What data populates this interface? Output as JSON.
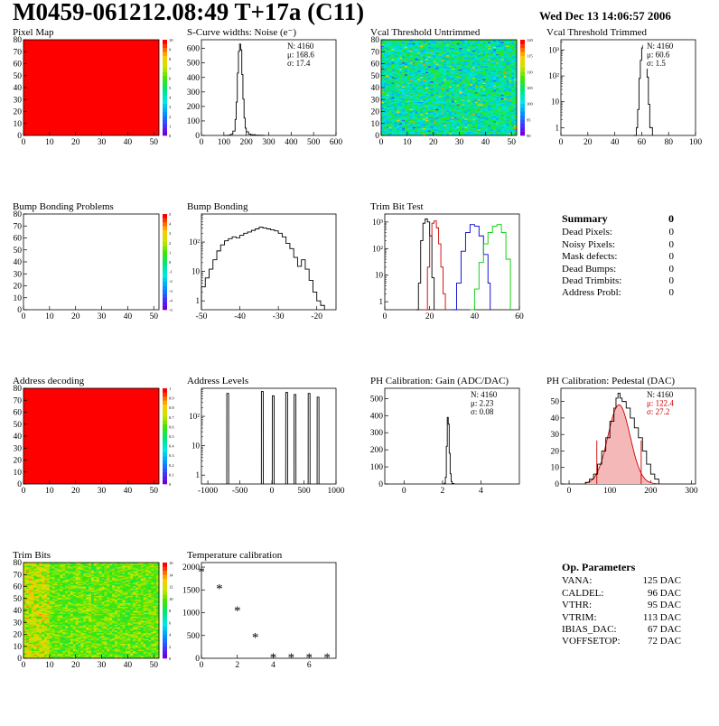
{
  "header": {
    "title": "M0459-061212.08:49 T+17a (C11)",
    "date": "Wed Dec 13 14:06:57 2006"
  },
  "colors": {
    "red_fill": "#ff0000",
    "trim_red": "#cc0000",
    "trim_blue": "#0000cc",
    "trim_green": "#00cc00",
    "pedestal_stat_red": "#cc0000"
  },
  "panels": [
    {
      "id": "pixel-map",
      "title": "Pixel Map",
      "chart_data": {
        "type": "heatmap",
        "fill": "uniform-red",
        "xlim": [
          0,
          52
        ],
        "ylim": [
          0,
          80
        ],
        "xticks": [
          0,
          10,
          20,
          30,
          40,
          50
        ],
        "yticks": [
          0,
          10,
          20,
          30,
          40,
          50,
          60,
          70,
          80
        ],
        "zticks": [
          "0",
          "1",
          "2",
          "3",
          "4",
          "5",
          "6",
          "7",
          "8",
          "9",
          "10"
        ]
      }
    },
    {
      "id": "scurve-noise",
      "title": "S-Curve widths: Noise (e⁻)",
      "chart_data": {
        "type": "line",
        "xlim": [
          0,
          600
        ],
        "ylim": [
          0,
          660
        ],
        "xticks": [
          0,
          100,
          200,
          300,
          400,
          500,
          600
        ],
        "yticks": [
          0,
          100,
          200,
          300,
          400,
          500,
          600
        ],
        "x": [
          100,
          120,
          130,
          140,
          150,
          155,
          160,
          165,
          170,
          175,
          180,
          185,
          190,
          195,
          200,
          210,
          220,
          240,
          260,
          280
        ],
        "y": [
          0,
          2,
          8,
          30,
          110,
          230,
          430,
          580,
          630,
          590,
          420,
          250,
          120,
          50,
          25,
          10,
          5,
          2,
          1,
          0
        ],
        "stats": {
          "N": "N: 4160",
          "mu": "μ: 168.6",
          "sigma": "σ: 17.4"
        }
      }
    },
    {
      "id": "vcal-untrimmed",
      "title": "Vcal Threshold Untrimmed",
      "chart_data": {
        "type": "heatmap",
        "fill": "noise-cyan-green",
        "xlim": [
          0,
          52
        ],
        "ylim": [
          0,
          80
        ],
        "xticks": [
          0,
          10,
          20,
          30,
          40,
          50
        ],
        "yticks": [
          0,
          10,
          20,
          30,
          40,
          50,
          60,
          70,
          80
        ],
        "zticks": [
          "90",
          "95",
          "100",
          "105",
          "110",
          "115",
          "120"
        ]
      }
    },
    {
      "id": "vcal-trimmed",
      "title": "Vcal Threshold Trimmed",
      "chart_data": {
        "type": "line",
        "log_y": true,
        "xlim": [
          0,
          100
        ],
        "ylim": [
          0.5,
          2500
        ],
        "xticks": [
          0,
          20,
          40,
          60,
          80,
          100
        ],
        "ylog_labels": [
          "1",
          "10",
          "10²",
          "10³"
        ],
        "x": [
          54,
          56,
          57,
          58,
          59,
          60,
          61,
          62,
          63,
          64,
          65,
          66,
          68
        ],
        "y": [
          0.5,
          1,
          5,
          80,
          400,
          1200,
          1500,
          1100,
          450,
          90,
          8,
          1,
          0.5
        ],
        "stats": {
          "N": "N: 4160",
          "mu": "μ: 60.6",
          "sigma": "σ:  1.5"
        }
      }
    },
    {
      "id": "bump-bonding-problems",
      "title": "Bump Bonding Problems",
      "chart_data": {
        "type": "heatmap",
        "fill": "empty",
        "xlim": [
          0,
          52
        ],
        "ylim": [
          0,
          80
        ],
        "xticks": [
          0,
          10,
          20,
          30,
          40,
          50
        ],
        "yticks": [
          0,
          10,
          20,
          30,
          40,
          50,
          60,
          70,
          80
        ],
        "zticks": [
          "-5",
          "-4",
          "-3",
          "-2",
          "-1",
          "0",
          "1",
          "2",
          "3",
          "4",
          "5"
        ]
      }
    },
    {
      "id": "bump-bonding",
      "title": "Bump Bonding",
      "chart_data": {
        "type": "line",
        "log_y": true,
        "xlim": [
          -50,
          -15
        ],
        "ylim": [
          0.5,
          900
        ],
        "xticks": [
          -50,
          -40,
          -30,
          -20
        ],
        "ylog_labels": [
          "1",
          "10",
          "10²"
        ],
        "x": [
          -50,
          -49,
          -48,
          -47,
          -46,
          -45,
          -44,
          -43,
          -42,
          -41,
          -40,
          -39,
          -38,
          -37,
          -36,
          -35,
          -34,
          -33,
          -32,
          -31,
          -30,
          -29,
          -28,
          -27,
          -26,
          -25,
          -24,
          -23,
          -22,
          -21,
          -20,
          -19,
          -18
        ],
        "y": [
          3,
          6,
          12,
          25,
          50,
          80,
          110,
          130,
          150,
          140,
          170,
          200,
          220,
          250,
          280,
          320,
          300,
          280,
          260,
          240,
          200,
          150,
          90,
          60,
          30,
          15,
          25,
          12,
          5,
          2,
          1,
          0.7,
          0.5
        ]
      }
    },
    {
      "id": "trim-bit-test",
      "title": "Trim Bit Test",
      "chart_data": {
        "type": "line",
        "log_y": true,
        "xlim": [
          0,
          60
        ],
        "ylim": [
          0.5,
          2000
        ],
        "xticks": [
          0,
          20,
          40,
          60
        ],
        "ylog_labels": [
          "1",
          "10",
          "10²",
          "10³"
        ],
        "series": [
          {
            "color": "#000000",
            "x": [
              14,
              15,
              16,
              17,
              18,
              19,
              20,
              21,
              22
            ],
            "y": [
              0.5,
              5,
              200,
              900,
              1300,
              1000,
              300,
              8,
              0.5
            ]
          },
          {
            "color": "#cc0000",
            "x": [
              17,
              19,
              20,
              21,
              22,
              23,
              24,
              25,
              26,
              27
            ],
            "y": [
              0.5,
              20,
              300,
              900,
              1100,
              600,
              150,
              20,
              2,
              0.5
            ]
          },
          {
            "color": "#0000cc",
            "x": [
              30,
              32,
              34,
              36,
              38,
              40,
              42,
              44,
              46,
              47
            ],
            "y": [
              0.5,
              5,
              80,
              400,
              800,
              700,
              300,
              60,
              5,
              0.5
            ]
          },
          {
            "color": "#00cc00",
            "x": [
              38,
              40,
              42,
              44,
              46,
              48,
              50,
              52,
              54,
              56
            ],
            "y": [
              0.5,
              3,
              30,
              150,
              400,
              700,
              800,
              400,
              40,
              0.5
            ]
          }
        ]
      }
    },
    {
      "id": "address-decoding",
      "title": "Address decoding",
      "chart_data": {
        "type": "heatmap",
        "fill": "uniform-red",
        "xlim": [
          0,
          52
        ],
        "ylim": [
          0,
          80
        ],
        "xticks": [
          0,
          10,
          20,
          30,
          40,
          50
        ],
        "yticks": [
          0,
          10,
          20,
          30,
          40,
          50,
          60,
          70,
          80
        ],
        "zticks": [
          "0",
          "0.1",
          "0.2",
          "0.3",
          "0.4",
          "0.5",
          "0.6",
          "0.7",
          "0.8",
          "0.9",
          "1"
        ]
      }
    },
    {
      "id": "address-levels",
      "title": "Address Levels",
      "chart_data": {
        "type": "line",
        "log_y": true,
        "xlim": [
          -1100,
          1000
        ],
        "ylim": [
          0.5,
          900
        ],
        "xticks": [
          -1000,
          -500,
          0,
          500,
          1000
        ],
        "ylog_labels": [
          "1",
          "10",
          "10²"
        ],
        "peaks": [
          {
            "center": -690,
            "height": 600
          },
          {
            "center": -150,
            "height": 700
          },
          {
            "center": 20,
            "height": 500
          },
          {
            "center": 230,
            "height": 650
          },
          {
            "center": 360,
            "height": 550
          },
          {
            "center": 580,
            "height": 600
          },
          {
            "center": 720,
            "height": 450
          }
        ]
      }
    },
    {
      "id": "ph-gain",
      "title": "PH Calibration: Gain (ADC/DAC)",
      "chart_data": {
        "type": "line",
        "xlim": [
          -1,
          6
        ],
        "ylim": [
          0,
          560
        ],
        "xticks": [
          0,
          2,
          4
        ],
        "yticks": [
          0,
          100,
          200,
          300,
          400,
          500
        ],
        "x": [
          2.0,
          2.1,
          2.15,
          2.2,
          2.25,
          2.3,
          2.35,
          2.4,
          2.45,
          2.5,
          2.6
        ],
        "y": [
          0,
          5,
          40,
          220,
          390,
          350,
          180,
          60,
          15,
          3,
          0
        ],
        "stats": {
          "N": "N: 4160",
          "mu": "μ: 2.23",
          "sigma": "σ: 0.08"
        }
      }
    },
    {
      "id": "ph-pedestal",
      "title": "PH Calibration: Pedestal (DAC)",
      "chart_data": {
        "type": "line",
        "xlim": [
          -20,
          310
        ],
        "ylim": [
          0,
          58
        ],
        "xticks": [
          0,
          100,
          200,
          300
        ],
        "yticks": [
          0,
          10,
          20,
          30,
          40,
          50
        ],
        "x": [
          40,
          50,
          60,
          70,
          80,
          90,
          100,
          110,
          115,
          120,
          125,
          130,
          140,
          150,
          160,
          170,
          180,
          190,
          200,
          210,
          220
        ],
        "y": [
          1,
          3,
          6,
          12,
          20,
          28,
          38,
          46,
          52,
          55,
          52,
          50,
          46,
          40,
          34,
          28,
          20,
          12,
          6,
          3,
          1
        ],
        "gauss": {
          "mu": 122.4,
          "sigma": 27.2,
          "amp": 48
        },
        "stats": {
          "N": "N: 4160",
          "mu": "μ: 122.4",
          "sigma": "σ: 27.2"
        }
      }
    },
    {
      "id": "trim-bits",
      "title": "Trim Bits",
      "chart_data": {
        "type": "heatmap",
        "fill": "noise-green-yellow",
        "xlim": [
          0,
          52
        ],
        "ylim": [
          0,
          80
        ],
        "xticks": [
          0,
          10,
          20,
          30,
          40,
          50
        ],
        "yticks": [
          0,
          10,
          20,
          30,
          40,
          50,
          60,
          70,
          80
        ],
        "zticks": [
          "0",
          "2",
          "4",
          "6",
          "8",
          "10",
          "12",
          "14",
          "16"
        ]
      }
    },
    {
      "id": "temperature-calibration",
      "title": "Temperature calibration",
      "chart_data": {
        "type": "scatter",
        "xlim": [
          0,
          7.5
        ],
        "ylim": [
          0,
          2100
        ],
        "xticks": [
          0,
          2,
          4,
          6
        ],
        "yticks": [
          0,
          500,
          1000,
          1500,
          2000
        ],
        "x": [
          0,
          1,
          2,
          3,
          4,
          5,
          6,
          7
        ],
        "y": [
          1900,
          1540,
          1050,
          470,
          20,
          20,
          20,
          20
        ]
      }
    }
  ],
  "summary": {
    "title": "Summary",
    "total": "0",
    "rows": [
      {
        "label": "Dead Pixels:",
        "value": "0"
      },
      {
        "label": "Noisy Pixels:",
        "value": "0"
      },
      {
        "label": "Mask defects:",
        "value": "0"
      },
      {
        "label": "Dead Bumps:",
        "value": "0"
      },
      {
        "label": "Dead Trimbits:",
        "value": "0"
      },
      {
        "label": "Address Probl:",
        "value": "0"
      }
    ]
  },
  "op_params": {
    "title": "Op. Parameters",
    "rows": [
      {
        "label": "VANA:",
        "value": "125 DAC"
      },
      {
        "label": "CALDEL:",
        "value": "96 DAC"
      },
      {
        "label": "VTHR:",
        "value": "95 DAC"
      },
      {
        "label": "VTRIM:",
        "value": "113 DAC"
      },
      {
        "label": "IBIAS_DAC:",
        "value": "67 DAC"
      },
      {
        "label": "VOFFSETOP:",
        "value": "72 DAC"
      }
    ]
  }
}
